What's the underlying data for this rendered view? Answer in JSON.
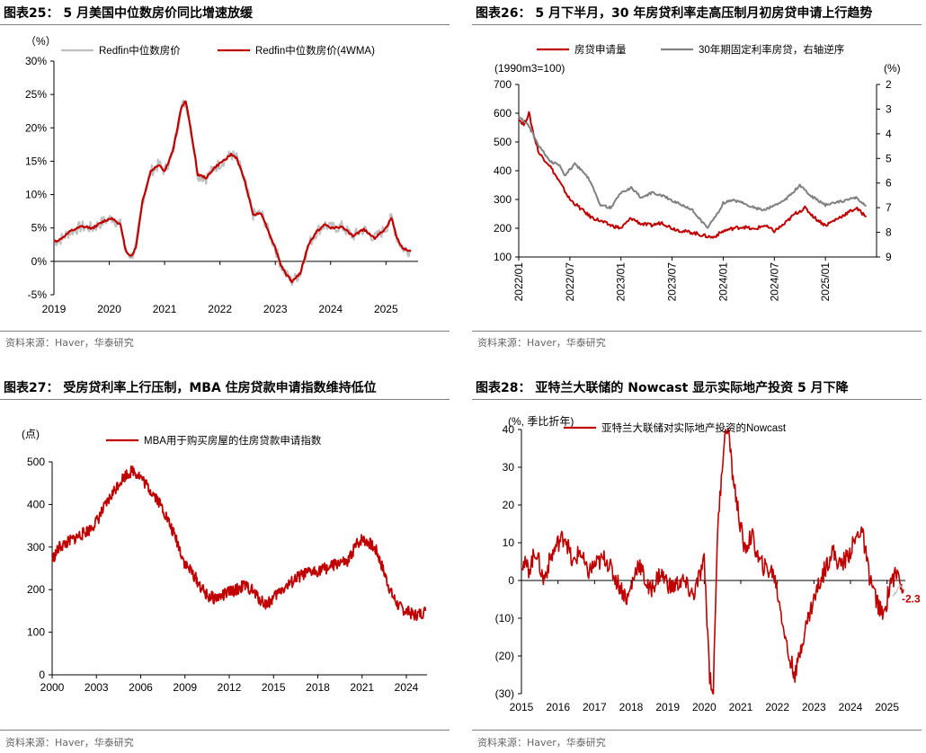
{
  "colors": {
    "red": "#c00000",
    "gray": "#bfbfbf",
    "darkgray": "#808080",
    "rule": "#7f7f7f",
    "source": "#666666"
  },
  "panels": [
    {
      "title": "图表25：  5 月美国中位数房价同比增速放缓",
      "source": "资料来源：Haver，华泰研究"
    },
    {
      "title": "图表26：  5 月下半月，30 年房贷利率走高压制月初房贷申请上行趋势",
      "source": "资料来源：Haver，华泰研究"
    },
    {
      "title": "图表27：  受房贷利率上行压制，MBA 住房贷款申请指数维持低位",
      "source": "资料来源：Haver，华泰研究"
    },
    {
      "title": "图表28：  亚特兰大联储的 Nowcast 显示实际地产投资 5 月下降",
      "source": "资料来源：Haver，华泰研究"
    }
  ],
  "chart_data": [
    {
      "type": "line",
      "unit_label": "（%）",
      "y_range": [
        -5,
        30
      ],
      "y_ticks": [
        "30%",
        "25%",
        "20%",
        "15%",
        "10%",
        "5%",
        "0%",
        "-5%"
      ],
      "y_tick_values": [
        30,
        25,
        20,
        15,
        10,
        5,
        0,
        -5
      ],
      "x_range": [
        2019,
        2025.58
      ],
      "x_ticks": [
        "2019",
        "2020",
        "2021",
        "2022",
        "2023",
        "2024",
        "2025"
      ],
      "x_tick_values": [
        2019,
        2020,
        2021,
        2022,
        2023,
        2024,
        2025
      ],
      "series": [
        {
          "name": "Redfin中位数房价",
          "color": "#bfbfbf",
          "width": 2,
          "noise": 0.9,
          "x": [
            2019.0,
            2019.1,
            2019.3,
            2019.5,
            2019.7,
            2019.9,
            2020.05,
            2020.2,
            2020.3,
            2020.4,
            2020.48,
            2020.6,
            2020.75,
            2020.9,
            2021.0,
            2021.15,
            2021.3,
            2021.38,
            2021.45,
            2021.6,
            2021.75,
            2021.9,
            2022.05,
            2022.2,
            2022.3,
            2022.45,
            2022.6,
            2022.75,
            2022.9,
            2023.0,
            2023.1,
            2023.2,
            2023.3,
            2023.45,
            2023.6,
            2023.75,
            2023.9,
            2024.0,
            2024.2,
            2024.4,
            2024.6,
            2024.8,
            2024.9,
            2025.0,
            2025.1,
            2025.2,
            2025.3,
            2025.45
          ],
          "y": [
            3,
            3.2,
            4.5,
            5.2,
            5.0,
            6.0,
            6.5,
            5.5,
            1.5,
            0.8,
            2.0,
            9.0,
            13.5,
            14.5,
            13.5,
            16.5,
            23.0,
            24.0,
            21.0,
            13.0,
            12.5,
            14.0,
            15.0,
            16.0,
            15.5,
            12.0,
            7.0,
            7.2,
            4.0,
            2.0,
            -0.5,
            -2.0,
            -3.0,
            -1.8,
            2.5,
            4.5,
            5.5,
            5.0,
            5.2,
            3.8,
            4.8,
            3.5,
            4.2,
            5.0,
            6.5,
            3.5,
            2.0,
            1.5
          ]
        },
        {
          "name": "Redfin中位数房价(4WMA)",
          "color": "#c00000",
          "width": 2.2,
          "noise": 0.15,
          "x": [
            2019.0,
            2019.1,
            2019.3,
            2019.5,
            2019.7,
            2019.9,
            2020.05,
            2020.2,
            2020.3,
            2020.4,
            2020.48,
            2020.6,
            2020.75,
            2020.9,
            2021.0,
            2021.15,
            2021.3,
            2021.38,
            2021.45,
            2021.6,
            2021.75,
            2021.9,
            2022.05,
            2022.2,
            2022.3,
            2022.45,
            2022.6,
            2022.75,
            2022.9,
            2023.0,
            2023.1,
            2023.2,
            2023.3,
            2023.45,
            2023.6,
            2023.75,
            2023.9,
            2024.0,
            2024.2,
            2024.4,
            2024.6,
            2024.8,
            2024.9,
            2025.0,
            2025.1,
            2025.2,
            2025.3,
            2025.45
          ],
          "y": [
            3,
            3.2,
            4.5,
            5.2,
            5.0,
            6.0,
            6.5,
            5.5,
            1.5,
            0.8,
            2.0,
            9.0,
            13.5,
            14.5,
            13.5,
            16.5,
            23.0,
            24.0,
            21.0,
            13.0,
            12.5,
            14.0,
            15.0,
            16.0,
            15.5,
            12.0,
            7.0,
            7.2,
            4.0,
            2.0,
            -0.5,
            -2.0,
            -3.0,
            -1.8,
            2.5,
            4.5,
            5.5,
            5.0,
            5.2,
            3.8,
            4.8,
            3.5,
            4.2,
            5.0,
            6.5,
            3.5,
            2.0,
            1.5
          ]
        }
      ]
    },
    {
      "type": "line",
      "left_unit_label": "(1990m3=100)",
      "right_unit_label": "(%)",
      "y_range": [
        100,
        700
      ],
      "y_ticks": [
        "700",
        "600",
        "500",
        "400",
        "300",
        "200",
        "100"
      ],
      "y_tick_values": [
        700,
        600,
        500,
        400,
        300,
        200,
        100
      ],
      "y2_range": [
        2,
        9
      ],
      "y2_reversed": true,
      "y2_ticks": [
        "2",
        "3",
        "4",
        "5",
        "6",
        "7",
        "8",
        "9"
      ],
      "y2_tick_values": [
        2,
        3,
        4,
        5,
        6,
        7,
        8,
        9
      ],
      "x_range": [
        2022.0,
        2025.5
      ],
      "x_ticks": [
        "2022/01",
        "2022/07",
        "2023/01",
        "2023/07",
        "2024/01",
        "2024/07",
        "2025/01"
      ],
      "x_tick_values": [
        2022.0,
        2022.5,
        2023.0,
        2023.5,
        2024.0,
        2024.5,
        2025.0
      ],
      "series": [
        {
          "name": "房贷申请量",
          "axis": "left",
          "color": "#c00000",
          "width": 2,
          "noise": 6,
          "x": [
            2022.0,
            2022.05,
            2022.1,
            2022.15,
            2022.2,
            2022.3,
            2022.4,
            2022.5,
            2022.6,
            2022.7,
            2022.8,
            2022.9,
            2023.0,
            2023.1,
            2023.2,
            2023.3,
            2023.4,
            2023.5,
            2023.6,
            2023.7,
            2023.8,
            2023.9,
            2024.0,
            2024.1,
            2024.2,
            2024.3,
            2024.4,
            2024.5,
            2024.6,
            2024.7,
            2024.8,
            2024.9,
            2025.0,
            2025.1,
            2025.2,
            2025.3,
            2025.4
          ],
          "y": [
            580,
            560,
            600,
            520,
            460,
            420,
            360,
            300,
            270,
            240,
            225,
            210,
            200,
            235,
            215,
            210,
            220,
            200,
            190,
            185,
            175,
            168,
            190,
            200,
            205,
            195,
            210,
            190,
            215,
            250,
            270,
            235,
            210,
            230,
            250,
            270,
            240
          ]
        },
        {
          "name": "30年期固定利率房贷，右轴逆序",
          "axis": "right",
          "color": "#808080",
          "width": 2,
          "noise": 0.05,
          "x": [
            2022.0,
            2022.1,
            2022.2,
            2022.3,
            2022.4,
            2022.45,
            2022.55,
            2022.7,
            2022.8,
            2022.9,
            2023.0,
            2023.1,
            2023.2,
            2023.3,
            2023.4,
            2023.5,
            2023.6,
            2023.7,
            2023.8,
            2023.85,
            2023.95,
            2024.0,
            2024.1,
            2024.2,
            2024.3,
            2024.4,
            2024.5,
            2024.6,
            2024.7,
            2024.75,
            2024.85,
            2025.0,
            2025.1,
            2025.2,
            2025.3,
            2025.4
          ],
          "y": [
            3.3,
            3.7,
            4.5,
            5.1,
            5.3,
            5.7,
            5.2,
            5.9,
            6.9,
            7.0,
            6.4,
            6.2,
            6.6,
            6.4,
            6.5,
            6.7,
            6.9,
            7.1,
            7.6,
            7.8,
            7.2,
            6.8,
            6.7,
            6.8,
            7.0,
            7.1,
            6.9,
            6.7,
            6.3,
            6.1,
            6.5,
            6.9,
            6.8,
            6.7,
            6.6,
            6.9
          ]
        }
      ]
    },
    {
      "type": "line",
      "unit_label": "(点)",
      "y_range": [
        0,
        500
      ],
      "y_ticks": [
        "500",
        "400",
        "300",
        "200",
        "100",
        "0"
      ],
      "y_tick_values": [
        500,
        400,
        300,
        200,
        100,
        0
      ],
      "x_range": [
        2000,
        2025.4
      ],
      "x_ticks": [
        "2000",
        "2003",
        "2006",
        "2009",
        "2012",
        "2015",
        "2018",
        "2021",
        "2024"
      ],
      "x_tick_values": [
        2000,
        2003,
        2006,
        2009,
        2012,
        2015,
        2018,
        2021,
        2024
      ],
      "series": [
        {
          "name": "MBA用于购买房屋的住房贷款申请指数",
          "color": "#c00000",
          "width": 1.8,
          "noise": 14,
          "x": [
            2000.0,
            2000.5,
            2001.0,
            2001.5,
            2002.0,
            2002.5,
            2003.0,
            2003.5,
            2004.0,
            2004.5,
            2005.0,
            2005.5,
            2006.0,
            2006.5,
            2007.0,
            2007.5,
            2008.0,
            2008.5,
            2009.0,
            2009.5,
            2010.0,
            2010.5,
            2011.0,
            2011.5,
            2012.0,
            2012.5,
            2013.0,
            2013.5,
            2014.0,
            2014.5,
            2015.0,
            2015.5,
            2016.0,
            2016.5,
            2017.0,
            2017.5,
            2018.0,
            2018.5,
            2019.0,
            2019.5,
            2020.0,
            2020.5,
            2021.0,
            2021.5,
            2022.0,
            2022.5,
            2023.0,
            2023.5,
            2024.0,
            2024.5,
            2025.0,
            2025.3
          ],
          "y": [
            270,
            300,
            310,
            320,
            330,
            340,
            360,
            390,
            420,
            450,
            470,
            480,
            465,
            440,
            420,
            390,
            350,
            310,
            260,
            240,
            210,
            185,
            180,
            185,
            195,
            200,
            210,
            200,
            180,
            165,
            180,
            200,
            210,
            225,
            235,
            240,
            245,
            250,
            255,
            265,
            260,
            300,
            320,
            310,
            290,
            240,
            190,
            160,
            150,
            140,
            145,
            150
          ]
        }
      ]
    },
    {
      "type": "line",
      "unit_label": "(%, 季比折年)",
      "y_range": [
        -30,
        40
      ],
      "y_ticks": [
        "40",
        "30",
        "20",
        "10",
        "0",
        "(10)",
        "(20)",
        "(30)"
      ],
      "y_tick_values": [
        40,
        30,
        20,
        10,
        0,
        -10,
        -20,
        -30
      ],
      "x_range": [
        2015,
        2025.5
      ],
      "x_ticks": [
        "2015",
        "2016",
        "2017",
        "2018",
        "2019",
        "2020",
        "2021",
        "2022",
        "2023",
        "2024",
        "2025"
      ],
      "x_tick_values": [
        2015,
        2016,
        2017,
        2018,
        2019,
        2020,
        2021,
        2022,
        2023,
        2024,
        2025
      ],
      "annotation": "-2.3",
      "series": [
        {
          "name": "亚特兰大联储对实际地产投资的Nowcast",
          "color": "#c00000",
          "width": 1.6,
          "noise": 2.5,
          "x": [
            2015.0,
            2015.2,
            2015.4,
            2015.6,
            2015.8,
            2016.0,
            2016.2,
            2016.4,
            2016.6,
            2016.8,
            2017.0,
            2017.3,
            2017.6,
            2017.9,
            2018.2,
            2018.5,
            2018.8,
            2019.1,
            2019.4,
            2019.7,
            2020.0,
            2020.15,
            2020.25,
            2020.35,
            2020.45,
            2020.55,
            2020.65,
            2020.75,
            2020.9,
            2021.1,
            2021.3,
            2021.5,
            2021.7,
            2021.9,
            2022.1,
            2022.3,
            2022.5,
            2022.7,
            2022.9,
            2023.1,
            2023.3,
            2023.5,
            2023.7,
            2023.9,
            2024.1,
            2024.3,
            2024.5,
            2024.7,
            2024.9,
            2025.1,
            2025.3,
            2025.45
          ],
          "y": [
            5,
            3,
            8,
            0,
            6,
            10,
            12,
            4,
            8,
            2,
            4,
            6,
            0,
            -5,
            5,
            -3,
            2,
            -2,
            0,
            -4,
            5,
            -25,
            -30,
            10,
            25,
            38,
            42,
            30,
            20,
            8,
            12,
            5,
            3,
            2,
            -8,
            -20,
            -25,
            -15,
            -8,
            -2,
            3,
            8,
            4,
            6,
            10,
            14,
            2,
            -5,
            -10,
            0,
            2,
            -2.3
          ]
        },
        {
          "name": "",
          "color": "#bfbfbf",
          "width": 1.2,
          "noise": 0.4,
          "x": [
            2025.15,
            2025.25,
            2025.35,
            2025.45
          ],
          "y": [
            -4,
            -3,
            -1.5,
            -2.3
          ]
        }
      ]
    }
  ]
}
